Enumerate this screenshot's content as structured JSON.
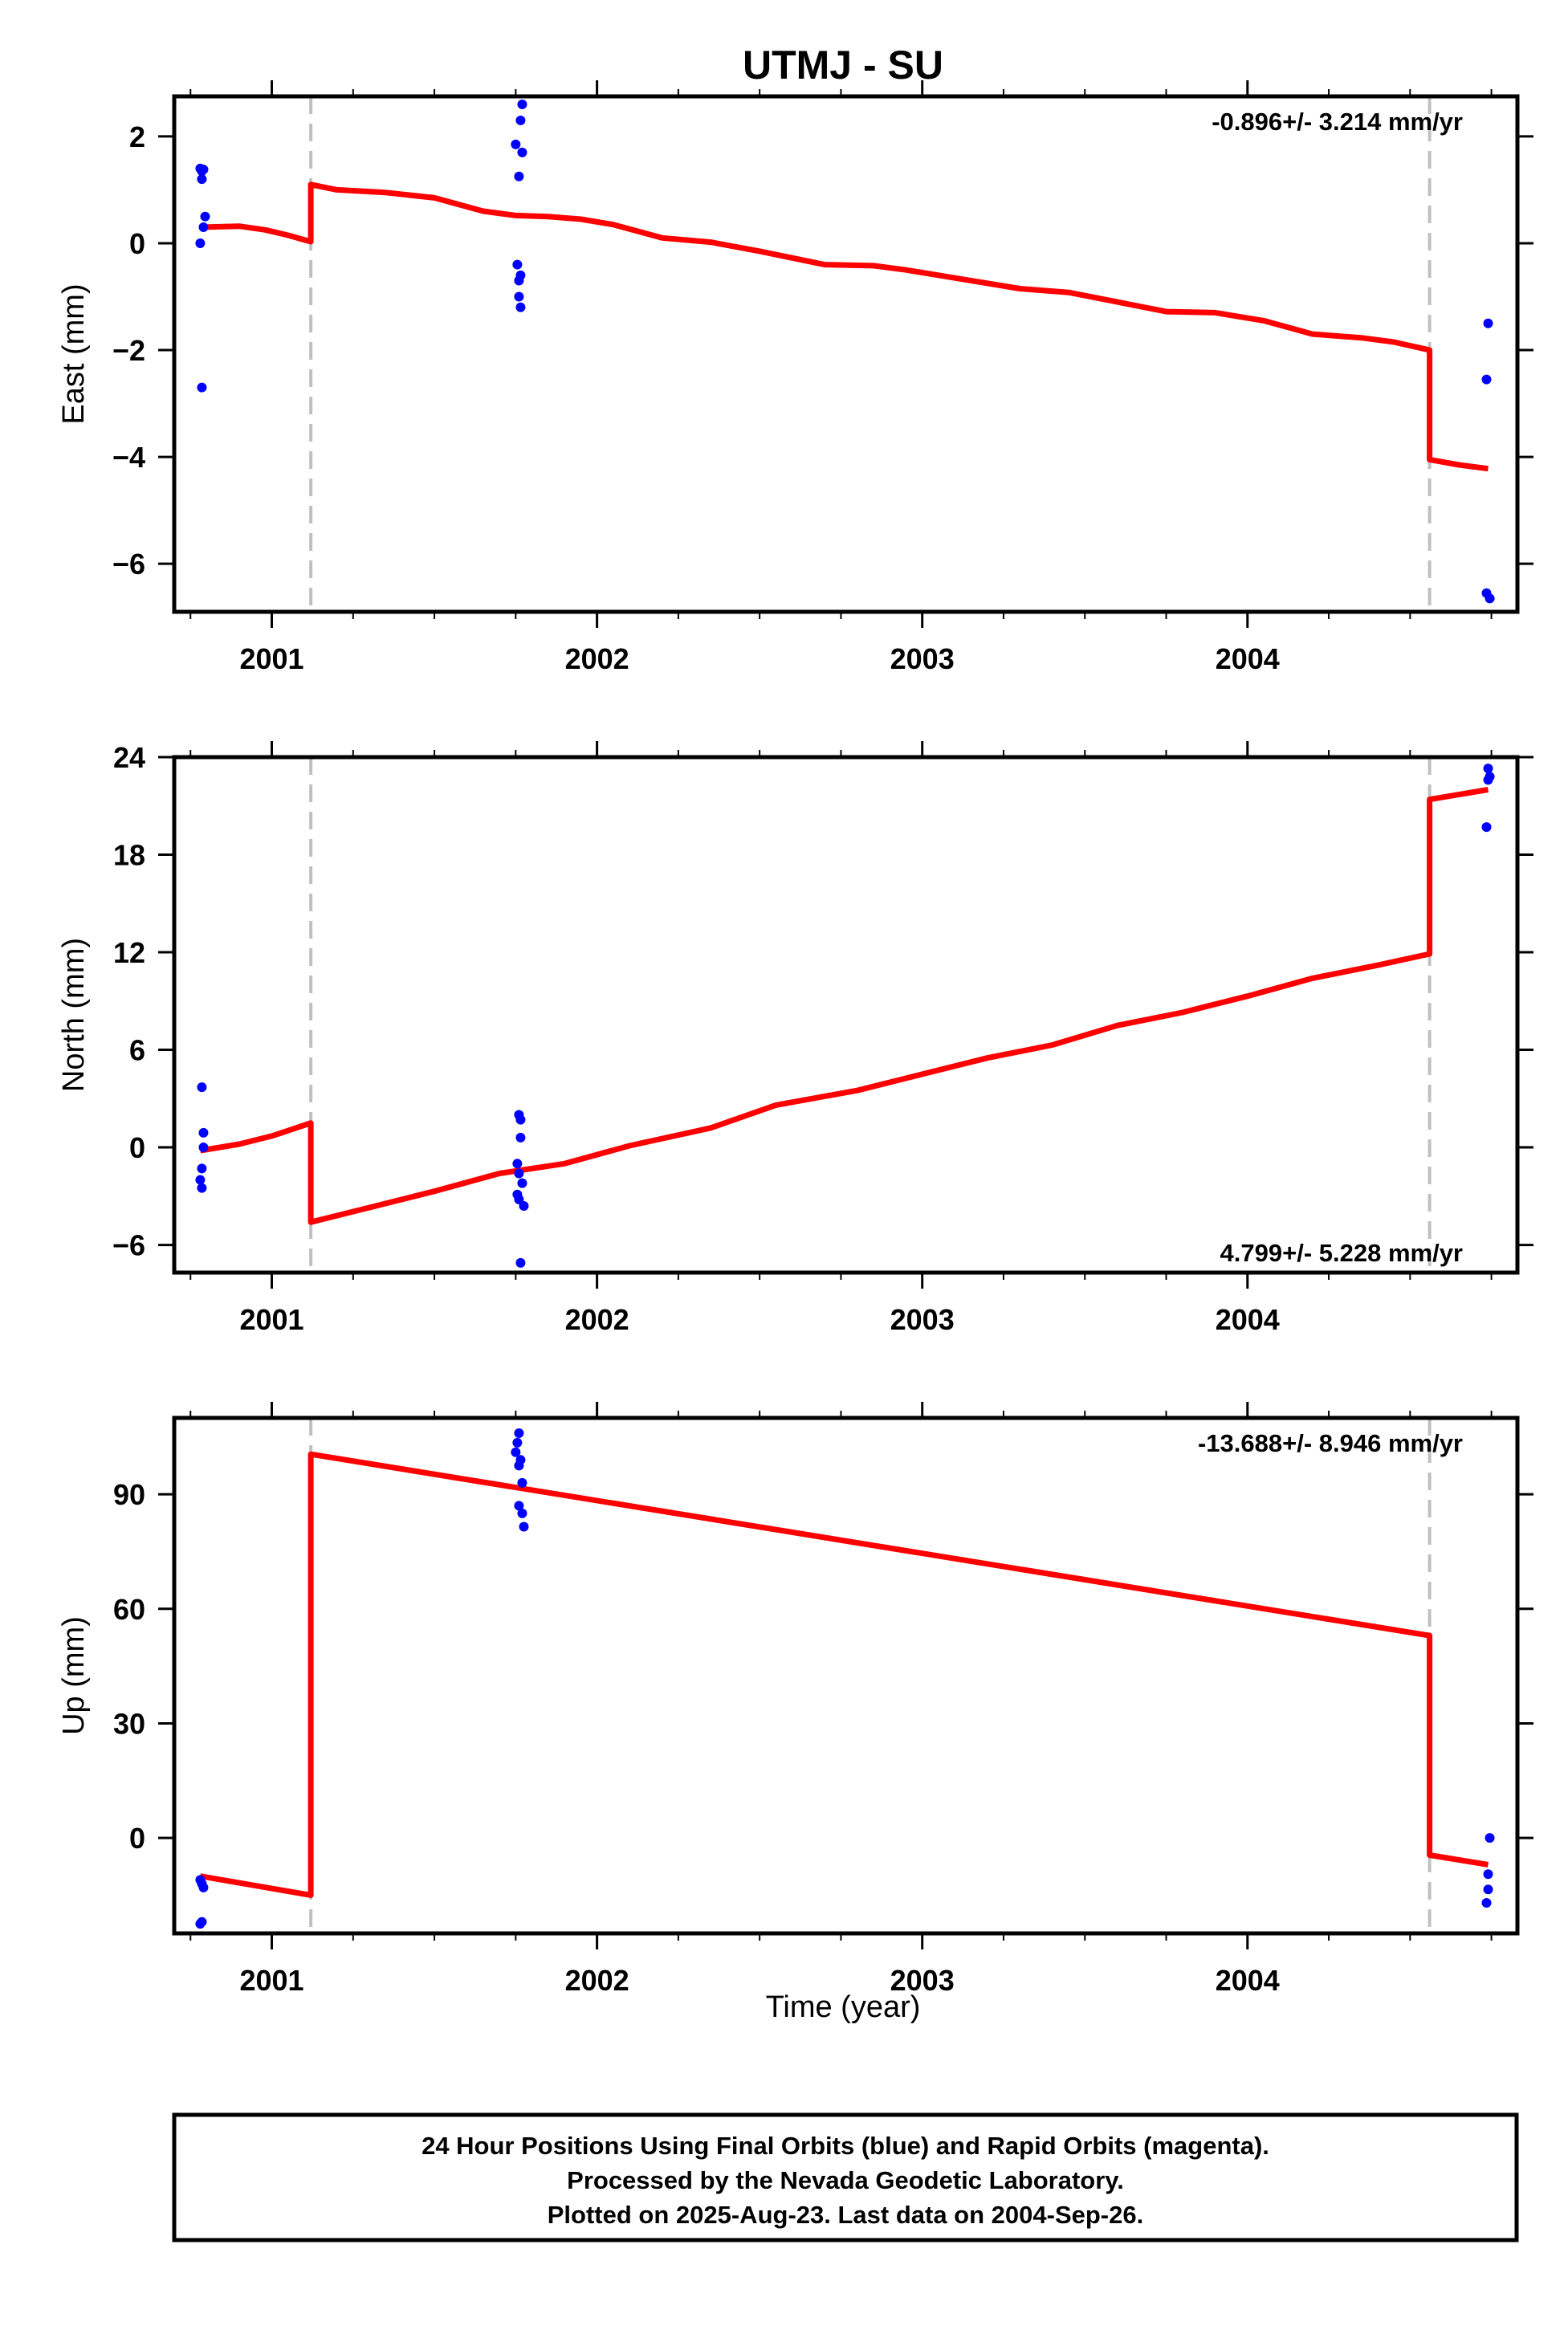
{
  "title": "UTMJ - SU",
  "colors": {
    "model": "#ff0000",
    "final_orbits": "#0000ff",
    "offset_line": "#c0c0c0",
    "frame": "#000000"
  },
  "xlabel": "Time (year)",
  "footer": {
    "line1": "24 Hour Positions Using Final Orbits (blue) and Rapid Orbits (magenta).",
    "line2": "Processed by the Nevada Geodetic Laboratory.",
    "line3": "Plotted on 2025-Aug-23. Last data on 2004-Sep-26."
  },
  "chart_data": [
    {
      "type": "scatter",
      "ylabel": "East (mm)",
      "rate_text": "-0.896+/- 3.214 mm/yr",
      "rate_position": "top-right",
      "xlim": [
        2000.7,
        2004.83
      ],
      "ylim": [
        -6.9,
        2.75
      ],
      "xticks": [
        2001,
        2002,
        2003,
        2004
      ],
      "yticks": [
        2,
        0,
        -2,
        -4,
        -6
      ],
      "ytick_labels": [
        "2",
        "0",
        "−2",
        "−4",
        "−6"
      ],
      "offset_lines": [
        2001.12,
        2004.56
      ],
      "points": [
        [
          2000.78,
          1.4
        ],
        [
          2000.785,
          1.35
        ],
        [
          2000.79,
          1.38
        ],
        [
          2000.785,
          1.2
        ],
        [
          2000.795,
          0.5
        ],
        [
          2000.79,
          0.3
        ],
        [
          2000.78,
          0.0
        ],
        [
          2000.785,
          -2.7
        ],
        [
          2001.75,
          1.85
        ],
        [
          2001.77,
          2.6
        ],
        [
          2001.765,
          2.3
        ],
        [
          2001.77,
          1.7
        ],
        [
          2001.76,
          1.25
        ],
        [
          2001.755,
          -0.4
        ],
        [
          2001.765,
          -0.6
        ],
        [
          2001.76,
          -0.7
        ],
        [
          2001.76,
          -1.0
        ],
        [
          2001.765,
          -1.2
        ],
        [
          2004.74,
          -1.5
        ],
        [
          2004.735,
          -2.55
        ],
        [
          2004.735,
          -6.55
        ],
        [
          2004.745,
          -6.65
        ]
      ],
      "model_line": [
        [
          2000.78,
          0.3
        ],
        [
          2000.9,
          0.32
        ],
        [
          2000.98,
          0.25
        ],
        [
          2001.05,
          0.15
        ],
        [
          2001.12,
          0.03
        ],
        [
          2001.12,
          1.1
        ],
        [
          2001.2,
          1.0
        ],
        [
          2001.35,
          0.95
        ],
        [
          2001.5,
          0.85
        ],
        [
          2001.65,
          0.6
        ],
        [
          2001.75,
          0.52
        ],
        [
          2001.85,
          0.5
        ],
        [
          2001.95,
          0.45
        ],
        [
          2002.05,
          0.35
        ],
        [
          2002.2,
          0.1
        ],
        [
          2002.35,
          0.02
        ],
        [
          2002.5,
          -0.15
        ],
        [
          2002.7,
          -0.4
        ],
        [
          2002.85,
          -0.42
        ],
        [
          2002.95,
          -0.5
        ],
        [
          2003.1,
          -0.65
        ],
        [
          2003.3,
          -0.85
        ],
        [
          2003.45,
          -0.92
        ],
        [
          2003.6,
          -1.1
        ],
        [
          2003.75,
          -1.28
        ],
        [
          2003.9,
          -1.3
        ],
        [
          2004.05,
          -1.45
        ],
        [
          2004.2,
          -1.7
        ],
        [
          2004.35,
          -1.77
        ],
        [
          2004.45,
          -1.85
        ],
        [
          2004.56,
          -2.0
        ],
        [
          2004.56,
          -4.05
        ],
        [
          2004.65,
          -4.15
        ],
        [
          2004.74,
          -4.22
        ]
      ]
    },
    {
      "type": "scatter",
      "ylabel": "North (mm)",
      "rate_text": "4.799+/- 5.228 mm/yr",
      "rate_position": "bottom-right",
      "xlim": [
        2000.7,
        2004.83
      ],
      "ylim": [
        -7.7,
        24.0
      ],
      "xticks": [
        2001,
        2002,
        2003,
        2004
      ],
      "yticks": [
        24,
        18,
        12,
        6,
        0,
        -6
      ],
      "ytick_labels": [
        "24",
        "18",
        "12",
        "6",
        "0",
        "−6"
      ],
      "offset_lines": [
        2001.12,
        2004.56
      ],
      "points": [
        [
          2000.785,
          3.7
        ],
        [
          2000.79,
          0.9
        ],
        [
          2000.79,
          0.0
        ],
        [
          2000.785,
          -1.3
        ],
        [
          2000.78,
          -2.0
        ],
        [
          2000.785,
          -2.5
        ],
        [
          2001.76,
          2.0
        ],
        [
          2001.765,
          1.7
        ],
        [
          2001.765,
          0.6
        ],
        [
          2001.755,
          -1.0
        ],
        [
          2001.76,
          -1.6
        ],
        [
          2001.77,
          -2.2
        ],
        [
          2001.755,
          -2.9
        ],
        [
          2001.76,
          -3.2
        ],
        [
          2001.775,
          -3.6
        ],
        [
          2001.765,
          -7.1
        ],
        [
          2004.74,
          23.3
        ],
        [
          2004.745,
          22.8
        ],
        [
          2004.74,
          22.6
        ],
        [
          2004.735,
          19.7
        ]
      ],
      "model_line": [
        [
          2000.78,
          -0.2
        ],
        [
          2000.9,
          0.2
        ],
        [
          2001.0,
          0.7
        ],
        [
          2001.12,
          1.5
        ],
        [
          2001.12,
          -4.6
        ],
        [
          2001.3,
          -3.7
        ],
        [
          2001.5,
          -2.7
        ],
        [
          2001.7,
          -1.6
        ],
        [
          2001.9,
          -1.0
        ],
        [
          2002.1,
          0.1
        ],
        [
          2002.35,
          1.2
        ],
        [
          2002.55,
          2.6
        ],
        [
          2002.8,
          3.5
        ],
        [
          2003.0,
          4.5
        ],
        [
          2003.2,
          5.5
        ],
        [
          2003.4,
          6.3
        ],
        [
          2003.6,
          7.5
        ],
        [
          2003.8,
          8.3
        ],
        [
          2004.0,
          9.3
        ],
        [
          2004.2,
          10.4
        ],
        [
          2004.4,
          11.2
        ],
        [
          2004.56,
          11.9
        ],
        [
          2004.56,
          21.4
        ],
        [
          2004.65,
          21.7
        ],
        [
          2004.74,
          22.0
        ]
      ]
    },
    {
      "type": "scatter",
      "ylabel": "Up (mm)",
      "rate_text": "-13.688+/- 8.946 mm/yr",
      "rate_position": "top-right",
      "xlim": [
        2000.7,
        2004.83
      ],
      "ylim": [
        -25,
        110
      ],
      "xticks": [
        2001,
        2002,
        2003,
        2004
      ],
      "yticks": [
        90,
        60,
        30,
        0
      ],
      "ytick_labels": [
        "90",
        "60",
        "30",
        "0"
      ],
      "offset_lines": [
        2001.12,
        2004.56
      ],
      "points": [
        [
          2000.78,
          -11
        ],
        [
          2000.785,
          -12
        ],
        [
          2000.79,
          -13
        ],
        [
          2000.785,
          -22
        ],
        [
          2000.78,
          -22.5
        ],
        [
          2001.76,
          106
        ],
        [
          2001.755,
          103.5
        ],
        [
          2001.75,
          101
        ],
        [
          2001.765,
          99
        ],
        [
          2001.76,
          97.5
        ],
        [
          2001.77,
          93
        ],
        [
          2001.76,
          87
        ],
        [
          2001.77,
          85
        ],
        [
          2001.775,
          81.5
        ],
        [
          2004.745,
          0
        ],
        [
          2004.74,
          -9.5
        ],
        [
          2004.74,
          -13.5
        ],
        [
          2004.735,
          -17
        ]
      ],
      "model_line": [
        [
          2000.78,
          -10
        ],
        [
          2001.12,
          -15
        ],
        [
          2001.12,
          100.5
        ],
        [
          2004.56,
          53
        ],
        [
          2004.56,
          -4.5
        ],
        [
          2004.74,
          -7
        ]
      ]
    }
  ]
}
